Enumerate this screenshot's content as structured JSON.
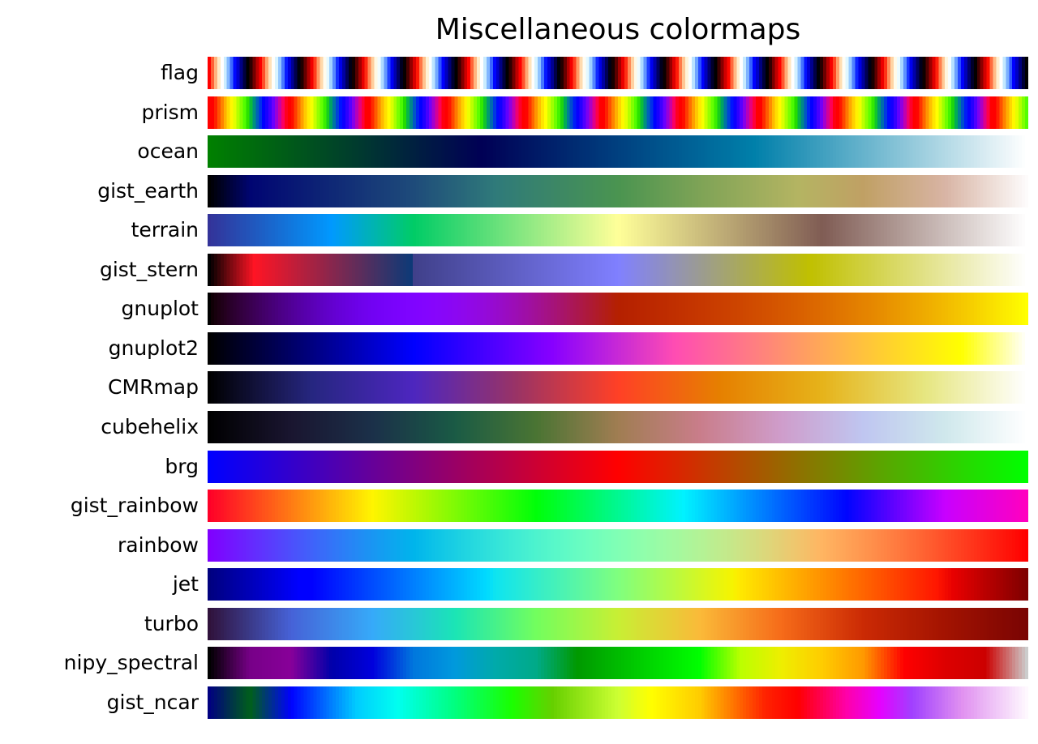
{
  "title": "Miscellaneous colormaps",
  "colormaps": [
    {
      "name": "flag",
      "stops": []
    },
    {
      "name": "prism",
      "stops": []
    },
    {
      "name": "ocean",
      "stops": []
    },
    {
      "name": "gist_earth",
      "stops": [
        [
          0,
          "#000000"
        ],
        [
          0.05,
          "#000572"
        ],
        [
          0.25,
          "#1e4b7a"
        ],
        [
          0.35,
          "#2f7a7a"
        ],
        [
          0.5,
          "#4a9450"
        ],
        [
          0.6,
          "#7ea356"
        ],
        [
          0.72,
          "#b4b462"
        ],
        [
          0.8,
          "#c0a064"
        ],
        [
          0.9,
          "#d8b4a4"
        ],
        [
          1,
          "#fdfbfb"
        ]
      ]
    },
    {
      "name": "terrain",
      "stops": [
        [
          0,
          "#333399"
        ],
        [
          0.15,
          "#0099ff"
        ],
        [
          0.25,
          "#00cc66"
        ],
        [
          0.5,
          "#ffff99"
        ],
        [
          0.75,
          "#805c54"
        ],
        [
          1,
          "#ffffff"
        ]
      ]
    },
    {
      "name": "gist_stern",
      "stops": [
        [
          0,
          "#000000"
        ],
        [
          0.055,
          "#ff1424"
        ],
        [
          0.25,
          "#0a3a78"
        ],
        [
          0.2501,
          "#40408a"
        ],
        [
          0.5,
          "#8080ff"
        ],
        [
          0.735,
          "#c0c000"
        ],
        [
          1,
          "#ffffff"
        ]
      ]
    },
    {
      "name": "gnuplot",
      "stops": []
    },
    {
      "name": "gnuplot2",
      "stops": []
    },
    {
      "name": "CMRmap",
      "stops": [
        [
          0,
          "#000000"
        ],
        [
          0.125,
          "#262680"
        ],
        [
          0.25,
          "#4d26bf"
        ],
        [
          0.375,
          "#993366"
        ],
        [
          0.5,
          "#ff4026"
        ],
        [
          0.625,
          "#e68000"
        ],
        [
          0.75,
          "#e6b31a"
        ],
        [
          0.875,
          "#e6e680"
        ],
        [
          1,
          "#ffffff"
        ]
      ]
    },
    {
      "name": "cubehelix",
      "stops": [
        [
          0,
          "#000000"
        ],
        [
          0.1,
          "#1a1530"
        ],
        [
          0.2,
          "#1b3049"
        ],
        [
          0.3,
          "#1a5a45"
        ],
        [
          0.4,
          "#4a7433"
        ],
        [
          0.5,
          "#a07d52"
        ],
        [
          0.6,
          "#c97d8a"
        ],
        [
          0.7,
          "#cf9dcb"
        ],
        [
          0.8,
          "#bfc6f0"
        ],
        [
          0.9,
          "#cfe8ec"
        ],
        [
          1,
          "#ffffff"
        ]
      ]
    },
    {
      "name": "brg",
      "stops": [
        [
          0,
          "#0000ff"
        ],
        [
          0.5,
          "#ff0000"
        ],
        [
          1,
          "#00ff00"
        ]
      ]
    },
    {
      "name": "gist_rainbow",
      "stops": [
        [
          0,
          "#ff0028"
        ],
        [
          0.2,
          "#fff500"
        ],
        [
          0.4,
          "#00ff09"
        ],
        [
          0.58,
          "#00f2ff"
        ],
        [
          0.78,
          "#0004ff"
        ],
        [
          0.9,
          "#c800ff"
        ],
        [
          1,
          "#ff00bf"
        ]
      ]
    },
    {
      "name": "rainbow",
      "stops": []
    },
    {
      "name": "jet",
      "stops": [
        [
          0,
          "#00007f"
        ],
        [
          0.11,
          "#0000ff"
        ],
        [
          0.125,
          "#0000ff"
        ],
        [
          0.34,
          "#00dbff"
        ],
        [
          0.35,
          "#0ee4f0"
        ],
        [
          0.5,
          "#7fff7f"
        ],
        [
          0.64,
          "#f6f400"
        ],
        [
          0.65,
          "#ffe800"
        ],
        [
          0.89,
          "#ff1600"
        ],
        [
          0.91,
          "#e80000"
        ],
        [
          1,
          "#7f0000"
        ]
      ]
    },
    {
      "name": "turbo",
      "stops": [
        [
          0,
          "#30123b"
        ],
        [
          0.1,
          "#4662d7"
        ],
        [
          0.2,
          "#36aaf9"
        ],
        [
          0.3,
          "#1ae4b6"
        ],
        [
          0.4,
          "#72fe5e"
        ],
        [
          0.5,
          "#c8ef34"
        ],
        [
          0.6,
          "#faba39"
        ],
        [
          0.7,
          "#f66b19"
        ],
        [
          0.8,
          "#cb2a04"
        ],
        [
          0.9,
          "#a31301"
        ],
        [
          1,
          "#7a0403"
        ]
      ]
    },
    {
      "name": "nipy_spectral",
      "stops": [
        [
          0,
          "#000000"
        ],
        [
          0.05,
          "#770088"
        ],
        [
          0.1,
          "#880099"
        ],
        [
          0.15,
          "#0000aa"
        ],
        [
          0.2,
          "#0000dd"
        ],
        [
          0.25,
          "#0077dd"
        ],
        [
          0.3,
          "#0099dd"
        ],
        [
          0.35,
          "#00aaaa"
        ],
        [
          0.4,
          "#00aa88"
        ],
        [
          0.45,
          "#009900"
        ],
        [
          0.5,
          "#00bb00"
        ],
        [
          0.55,
          "#00dd00"
        ],
        [
          0.6,
          "#00ff00"
        ],
        [
          0.65,
          "#bbff00"
        ],
        [
          0.7,
          "#eeee00"
        ],
        [
          0.75,
          "#ffcc00"
        ],
        [
          0.8,
          "#ff9900"
        ],
        [
          0.85,
          "#ff0000"
        ],
        [
          0.9,
          "#dd0000"
        ],
        [
          0.95,
          "#cc0000"
        ],
        [
          1,
          "#cccccc"
        ]
      ]
    },
    {
      "name": "gist_ncar",
      "stops": [
        [
          0,
          "#000080"
        ],
        [
          0.05,
          "#00601a"
        ],
        [
          0.1,
          "#0000ff"
        ],
        [
          0.18,
          "#00ccff"
        ],
        [
          0.23,
          "#00fff0"
        ],
        [
          0.3,
          "#00ff80"
        ],
        [
          0.37,
          "#1aff00"
        ],
        [
          0.42,
          "#66d000"
        ],
        [
          0.5,
          "#ccff33"
        ],
        [
          0.54,
          "#ffff00"
        ],
        [
          0.6,
          "#ffcc00"
        ],
        [
          0.68,
          "#ff2200"
        ],
        [
          0.72,
          "#ff0000"
        ],
        [
          0.78,
          "#ff00aa"
        ],
        [
          0.82,
          "#e600ff"
        ],
        [
          0.86,
          "#a040ff"
        ],
        [
          0.92,
          "#e090f0"
        ],
        [
          1,
          "#fef8fe"
        ]
      ]
    }
  ]
}
